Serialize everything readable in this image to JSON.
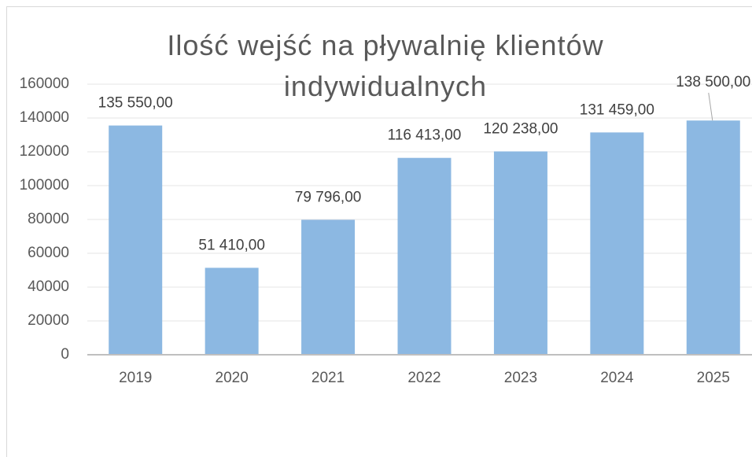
{
  "chart_data": {
    "type": "bar",
    "title": "Ilość wejść na pływalnię klientów indywidualnych",
    "categories": [
      "2019",
      "2020",
      "2021",
      "2022",
      "2023",
      "2024",
      "2025"
    ],
    "values": [
      135550,
      51410,
      79796,
      116413,
      120238,
      131459,
      138500
    ],
    "value_labels": [
      "135 550,00",
      "51 410,00",
      "79 796,00",
      "116 413,00",
      "120 238,00",
      "131 459,00",
      "138 500,00"
    ],
    "color": "#8cb8e2",
    "ylim": [
      0,
      160000
    ],
    "yticks": [
      0,
      20000,
      40000,
      60000,
      80000,
      100000,
      120000,
      140000,
      160000
    ],
    "grid": true
  }
}
